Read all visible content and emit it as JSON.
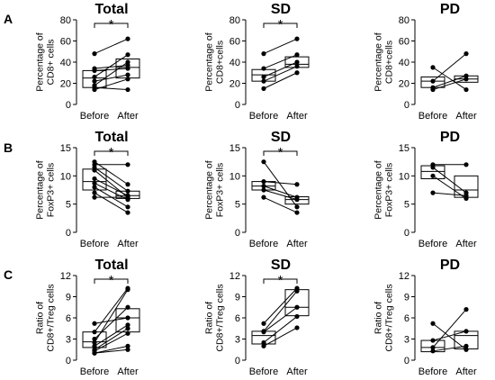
{
  "row_labels": [
    "A",
    "B",
    "C"
  ],
  "chart_data": [
    {
      "type": "box-paired",
      "row": 0,
      "col": 0,
      "title": "Total",
      "ylabel": [
        "Percentage of",
        "CD8+ cells"
      ],
      "categories": [
        "Before",
        "After"
      ],
      "ylim": [
        0,
        80
      ],
      "yticks": [
        0,
        20,
        40,
        60,
        80
      ],
      "significance": "*",
      "box_before": {
        "q1": 16,
        "median": 25,
        "q3": 32
      },
      "box_after": {
        "q1": 25,
        "median": 35,
        "q3": 43
      },
      "pairs": [
        [
          48,
          62
        ],
        [
          34,
          37
        ],
        [
          32,
          34
        ],
        [
          26,
          47
        ],
        [
          22,
          28
        ],
        [
          18,
          40
        ],
        [
          16,
          14
        ],
        [
          14,
          24
        ]
      ]
    },
    {
      "type": "box-paired",
      "row": 0,
      "col": 1,
      "title": "SD",
      "ylabel": [
        "Percentage of",
        "CD8+cells"
      ],
      "categories": [
        "Before",
        "After"
      ],
      "ylim": [
        0,
        80
      ],
      "yticks": [
        0,
        20,
        40,
        60,
        80
      ],
      "significance": "*",
      "box_before": {
        "q1": 22,
        "median": 28,
        "q3": 33
      },
      "box_after": {
        "q1": 35,
        "median": 38,
        "q3": 45
      },
      "pairs": [
        [
          48,
          62
        ],
        [
          34,
          47
        ],
        [
          26,
          40
        ],
        [
          22,
          36
        ],
        [
          15,
          30
        ]
      ]
    },
    {
      "type": "box-paired",
      "row": 0,
      "col": 2,
      "title": "PD",
      "ylabel": [
        "Percentage of",
        "CD8+cells"
      ],
      "categories": [
        "Before",
        "After"
      ],
      "ylim": [
        0,
        80
      ],
      "yticks": [
        0,
        20,
        40,
        60,
        80
      ],
      "significance": "",
      "box_before": {
        "q1": 16,
        "median": 22,
        "q3": 26
      },
      "box_after": {
        "q1": 21,
        "median": 24,
        "q3": 27
      },
      "pairs": [
        [
          35,
          14
        ],
        [
          22,
          48
        ],
        [
          16,
          27
        ],
        [
          14,
          24
        ]
      ]
    },
    {
      "type": "box-paired",
      "row": 1,
      "col": 0,
      "title": "Total",
      "ylabel": [
        "Percentage of",
        "FoxP3+ cells"
      ],
      "categories": [
        "Before",
        "After"
      ],
      "ylim": [
        0,
        15
      ],
      "yticks": [
        0,
        5,
        10,
        15
      ],
      "significance": "*",
      "box_before": {
        "q1": 7.5,
        "median": 9,
        "q3": 11.2
      },
      "box_after": {
        "q1": 6,
        "median": 6.5,
        "q3": 7.3
      },
      "pairs": [
        [
          12.5,
          8.5
        ],
        [
          12,
          12
        ],
        [
          11.5,
          7.3
        ],
        [
          11,
          6.2
        ],
        [
          9.5,
          6.5
        ],
        [
          8.7,
          5.8
        ],
        [
          8,
          4.5
        ],
        [
          7,
          3.5
        ],
        [
          6.2,
          6.2
        ]
      ]
    },
    {
      "type": "box-paired",
      "row": 1,
      "col": 1,
      "title": "SD",
      "ylabel": [
        "Percentage of",
        "FoxP3+ cells"
      ],
      "categories": [
        "Before",
        "After"
      ],
      "ylim": [
        0,
        15
      ],
      "yticks": [
        0,
        5,
        10,
        15
      ],
      "significance": "*",
      "box_before": {
        "q1": 7.5,
        "median": 8.2,
        "q3": 9
      },
      "box_after": {
        "q1": 5,
        "median": 5.8,
        "q3": 6.3
      },
      "pairs": [
        [
          12.5,
          4.5
        ],
        [
          9,
          8.5
        ],
        [
          8.2,
          6.2
        ],
        [
          7.5,
          5.8
        ],
        [
          6.2,
          3.5
        ]
      ]
    },
    {
      "type": "box-paired",
      "row": 1,
      "col": 2,
      "title": "PD",
      "ylabel": [
        "Percentage of",
        "FoxP3+ cells"
      ],
      "categories": [
        "Before",
        "After"
      ],
      "ylim": [
        0,
        15
      ],
      "yticks": [
        0,
        5,
        10,
        15
      ],
      "significance": "",
      "box_before": {
        "q1": 9.5,
        "median": 10.8,
        "q3": 11.8
      },
      "box_after": {
        "q1": 6.2,
        "median": 7.5,
        "q3": 10
      },
      "pairs": [
        [
          12,
          12
        ],
        [
          11.5,
          7
        ],
        [
          10,
          6
        ],
        [
          7,
          6.5
        ]
      ]
    },
    {
      "type": "box-paired",
      "row": 2,
      "col": 0,
      "title": "Total",
      "ylabel": [
        "Ratio of",
        "CD8+/Treg cells"
      ],
      "categories": [
        "Before",
        "After"
      ],
      "ylim": [
        0,
        12
      ],
      "yticks": [
        0,
        3,
        6,
        9,
        12
      ],
      "significance": "*",
      "box_before": {
        "q1": 1.8,
        "median": 2.6,
        "q3": 4
      },
      "box_after": {
        "q1": 4,
        "median": 6,
        "q3": 7.3
      },
      "pairs": [
        [
          5.2,
          6
        ],
        [
          4,
          10.2
        ],
        [
          3,
          7.5
        ],
        [
          2.5,
          10
        ],
        [
          2,
          5
        ],
        [
          1.5,
          4.5
        ],
        [
          1.3,
          3.8
        ],
        [
          1,
          1.5
        ],
        [
          1,
          2
        ]
      ]
    },
    {
      "type": "box-paired",
      "row": 2,
      "col": 1,
      "title": "SD",
      "ylabel": [
        "Ratio of",
        "CD8+/Treg cells"
      ],
      "categories": [
        "Before",
        "After"
      ],
      "ylim": [
        0,
        12
      ],
      "yticks": [
        0,
        3,
        6,
        9,
        12
      ],
      "significance": "*",
      "box_before": {
        "q1": 2.3,
        "median": 3.5,
        "q3": 4.1
      },
      "box_after": {
        "q1": 6.3,
        "median": 7.5,
        "q3": 10
      },
      "pairs": [
        [
          5.2,
          10.2
        ],
        [
          4.1,
          9.8
        ],
        [
          4,
          7.5
        ],
        [
          2.5,
          6.2
        ],
        [
          2,
          4.6
        ]
      ]
    },
    {
      "type": "box-paired",
      "row": 2,
      "col": 2,
      "title": "PD",
      "ylabel": [
        "Ratio of",
        "CD8+/Treg cells"
      ],
      "categories": [
        "Before",
        "After"
      ],
      "ylim": [
        0,
        12
      ],
      "yticks": [
        0,
        3,
        6,
        9,
        12
      ],
      "significance": "",
      "box_before": {
        "q1": 1.2,
        "median": 1.8,
        "q3": 2.8
      },
      "box_after": {
        "q1": 1.6,
        "median": 3.5,
        "q3": 4.1
      },
      "pairs": [
        [
          5.2,
          1.5
        ],
        [
          2.8,
          4.1
        ],
        [
          1.8,
          7.2
        ],
        [
          1.3,
          2
        ]
      ]
    }
  ]
}
